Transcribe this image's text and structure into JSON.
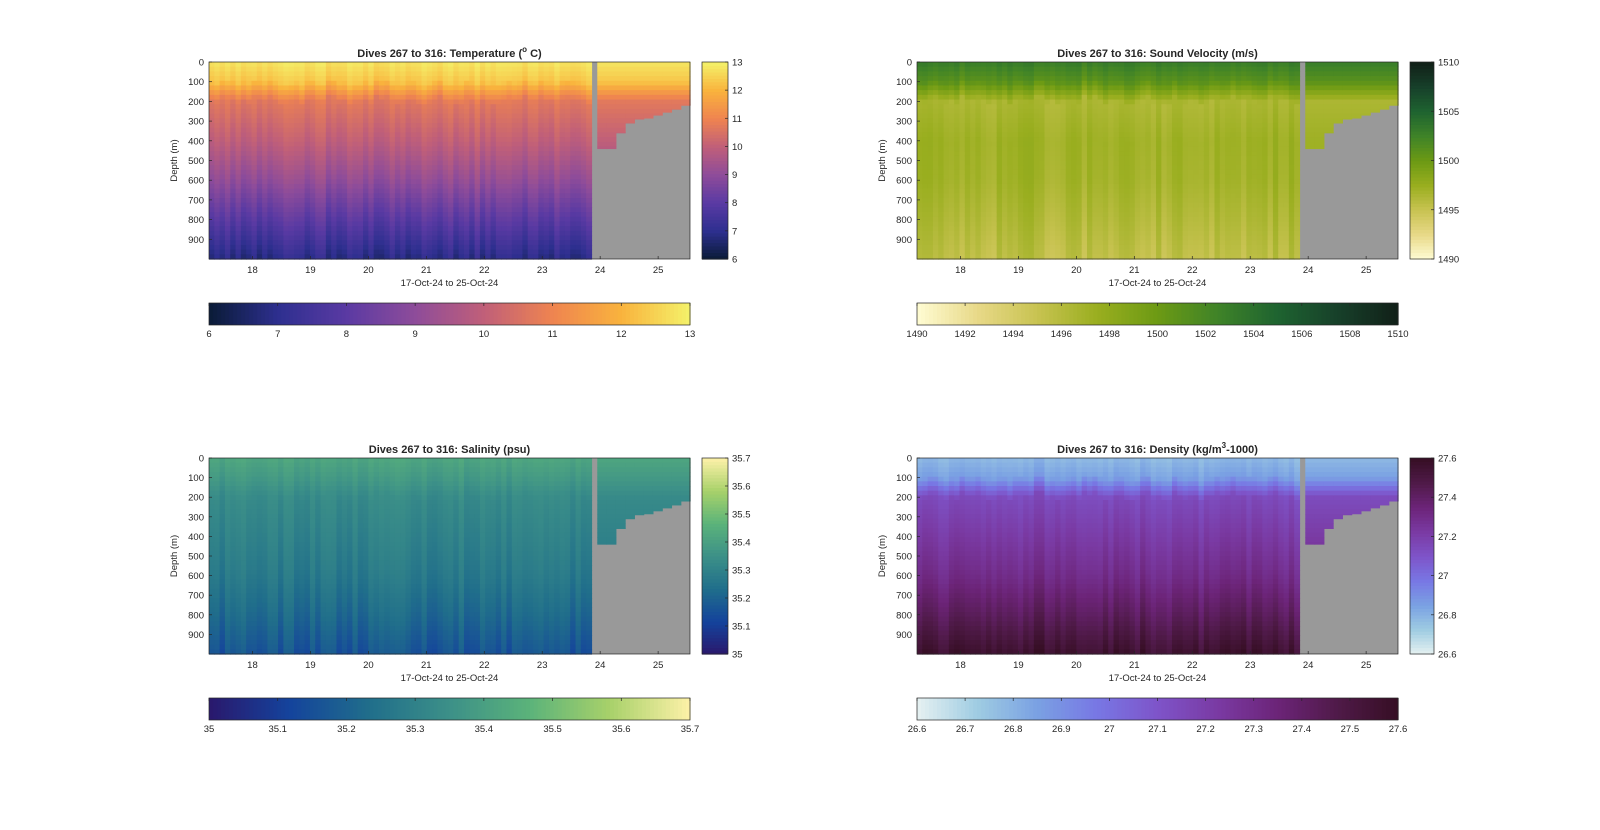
{
  "figure": {
    "background": "#ffffff",
    "nodata_color": "#999999"
  },
  "chart_data": [
    {
      "type": "heatmap",
      "title_main": "Dives 267 to 316: Temperature (",
      "title_sup": "o",
      "title_end": " C)",
      "xlabel": "17-Oct-24 to 25-Oct-24",
      "ylabel": "Depth (m)",
      "xlim": [
        17.25,
        25.55
      ],
      "ylim": [
        0,
        1000
      ],
      "y_reversed": true,
      "x_ticks": [
        "18",
        "19",
        "20",
        "21",
        "22",
        "23",
        "24",
        "25"
      ],
      "y_ticks": [
        "0",
        "100",
        "200",
        "300",
        "400",
        "500",
        "600",
        "700",
        "800",
        "900"
      ],
      "variable": "temperature",
      "colormap": "thermal",
      "colormap_stops": [
        "#0a1b36",
        "#2d2f8f",
        "#5a3aa3",
        "#8e4c9a",
        "#c05f79",
        "#ef8450",
        "#f9b33d",
        "#f4f26a"
      ],
      "clim": [
        6,
        13
      ],
      "vertical_colorbar_ticks": [
        "6",
        "7",
        "8",
        "9",
        "10",
        "11",
        "12",
        "13"
      ],
      "horizontal_colorbar_ticks": [
        "6",
        "7",
        "8",
        "9",
        "10",
        "11",
        "12",
        "13"
      ],
      "data_gap_x": [
        23.85,
        23.95
      ],
      "data_end_x": 23.85,
      "profile_depth_m": [
        0,
        100,
        200,
        400,
        600,
        800,
        1000
      ],
      "profile_values": [
        12.8,
        12.3,
        10.7,
        10.0,
        9.1,
        8.0,
        6.9
      ]
    },
    {
      "type": "heatmap",
      "title_main": "Dives 267 to 316: Sound Velocity (m/s)",
      "title_sup": "",
      "title_end": "",
      "xlabel": "17-Oct-24 to 25-Oct-24",
      "ylabel": "Depth (m)",
      "xlim": [
        17.25,
        25.55
      ],
      "ylim": [
        0,
        1000
      ],
      "y_reversed": true,
      "x_ticks": [
        "18",
        "19",
        "20",
        "21",
        "22",
        "23",
        "24",
        "25"
      ],
      "y_ticks": [
        "0",
        "100",
        "200",
        "300",
        "400",
        "500",
        "600",
        "700",
        "800",
        "900"
      ],
      "variable": "sound velocity",
      "colormap": "speed",
      "colormap_stops": [
        "#fffcd4",
        "#e8d988",
        "#c8c351",
        "#99ae1f",
        "#6c9a14",
        "#3f8328",
        "#1e6330",
        "#17402a",
        "#112018"
      ],
      "clim": [
        1490,
        1510
      ],
      "vertical_colorbar_ticks": [
        "1490",
        "1495",
        "1500",
        "1505",
        "1510"
      ],
      "horizontal_colorbar_ticks": [
        "1490",
        "1492",
        "1494",
        "1496",
        "1498",
        "1500",
        "1502",
        "1504",
        "1506",
        "1508",
        "1510"
      ],
      "data_gap_x": [
        23.85,
        23.95
      ],
      "data_end_x": 23.85,
      "profile_depth_m": [
        0,
        100,
        200,
        400,
        600,
        800,
        1000
      ],
      "profile_values": [
        1503.0,
        1501.0,
        1496.5,
        1497.2,
        1497.0,
        1496.3,
        1495.5
      ]
    },
    {
      "type": "heatmap",
      "title_main": "Dives 267 to 316: Salinity (psu)",
      "title_sup": "",
      "title_end": "",
      "xlabel": "17-Oct-24 to 25-Oct-24",
      "ylabel": "Depth (m)",
      "xlim": [
        17.25,
        25.55
      ],
      "ylim": [
        0,
        1000
      ],
      "y_reversed": true,
      "x_ticks": [
        "18",
        "19",
        "20",
        "21",
        "22",
        "23",
        "24",
        "25"
      ],
      "y_ticks": [
        "0",
        "100",
        "200",
        "300",
        "400",
        "500",
        "600",
        "700",
        "800",
        "900"
      ],
      "variable": "salinity",
      "colormap": "haline",
      "colormap_stops": [
        "#2a186c",
        "#14439c",
        "#206e8b",
        "#3c9088",
        "#5bb37a",
        "#a8d16a",
        "#fdf1a8"
      ],
      "clim": [
        35,
        35.7
      ],
      "vertical_colorbar_ticks": [
        "35",
        "35.1",
        "35.2",
        "35.3",
        "35.4",
        "35.5",
        "35.6",
        "35.7"
      ],
      "horizontal_colorbar_ticks": [
        "35",
        "35.1",
        "35.2",
        "35.3",
        "35.4",
        "35.5",
        "35.6",
        "35.7"
      ],
      "data_gap_x": [
        23.85,
        23.95
      ],
      "data_end_x": 23.85,
      "profile_depth_m": [
        0,
        100,
        200,
        400,
        600,
        800,
        1000
      ],
      "profile_values": [
        35.42,
        35.38,
        35.33,
        35.3,
        35.27,
        35.22,
        35.16
      ]
    },
    {
      "type": "heatmap",
      "title_main": "Dives 267 to 316: Density (kg/m",
      "title_sup": "3",
      "title_end": "-1000)",
      "xlabel": "17-Oct-24 to 25-Oct-24",
      "ylabel": "Depth (m)",
      "xlim": [
        17.25,
        25.55
      ],
      "ylim": [
        0,
        1000
      ],
      "y_reversed": true,
      "x_ticks": [
        "18",
        "19",
        "20",
        "21",
        "22",
        "23",
        "24",
        "25"
      ],
      "y_ticks": [
        "0",
        "100",
        "200",
        "300",
        "400",
        "500",
        "600",
        "700",
        "800",
        "900"
      ],
      "variable": "density",
      "colormap": "dense",
      "colormap_stops": [
        "#e6f1f1",
        "#9fcce2",
        "#7aa1e3",
        "#7877e4",
        "#7e54c9",
        "#7a3aa3",
        "#6c2478",
        "#4f1a48",
        "#360e24"
      ],
      "clim": [
        26.6,
        27.6
      ],
      "vertical_colorbar_ticks": [
        "26.6",
        "26.8",
        "27",
        "27.2",
        "27.4",
        "27.6"
      ],
      "horizontal_colorbar_ticks": [
        "26.6",
        "26.7",
        "26.8",
        "26.9",
        "27",
        "27.1",
        "27.2",
        "27.3",
        "27.4",
        "27.5",
        "27.6"
      ],
      "data_gap_x": [
        23.85,
        23.95
      ],
      "data_end_x": 23.85,
      "profile_depth_m": [
        0,
        100,
        200,
        400,
        600,
        800,
        1000
      ],
      "profile_values": [
        26.78,
        26.85,
        27.14,
        27.22,
        27.3,
        27.42,
        27.56
      ]
    }
  ]
}
